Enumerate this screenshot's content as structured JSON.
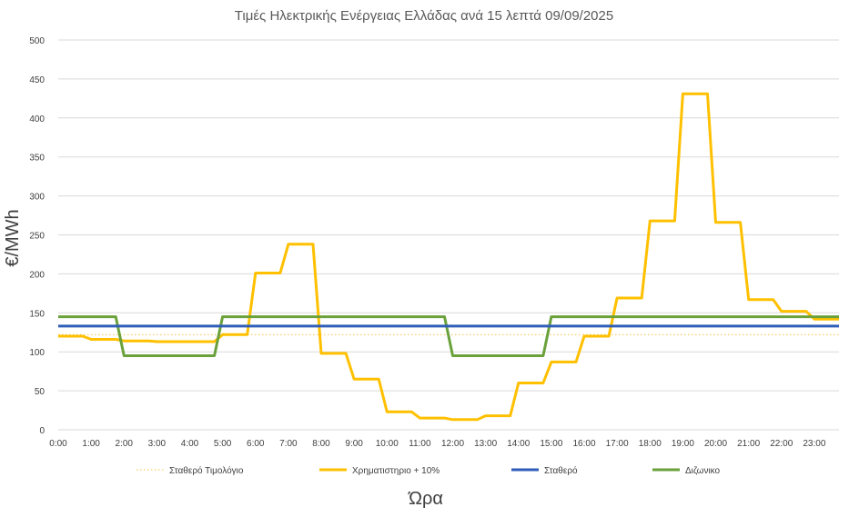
{
  "chart_data": {
    "type": "line",
    "title": "Τιμές Ηλεκτρικής Ενέργειας Ελλάδας ανά 15 λεπτά 09/09/2025",
    "xlabel": "Ώρα",
    "ylabel": "€/MWh",
    "ylim": [
      0,
      500
    ],
    "yticks": [
      0,
      50,
      100,
      150,
      200,
      250,
      300,
      350,
      400,
      450,
      500
    ],
    "xlim": [
      0,
      23.75
    ],
    "xticks": [
      "0:00",
      "1:00",
      "2:00",
      "3:00",
      "4:00",
      "5:00",
      "6:00",
      "7:00",
      "8:00",
      "9:00",
      "10:00",
      "11:00",
      "12:00",
      "13:00",
      "14:00",
      "15:00",
      "16:00",
      "17:00",
      "18:00",
      "19:00",
      "20:00",
      "21:00",
      "22:00",
      "23:00"
    ],
    "grid": "horizontal",
    "legend_position": "bottom",
    "series": [
      {
        "name": "Σταθερό Τιμολόγιο",
        "color": "#F5C242",
        "style": "dotted",
        "points": [
          [
            0,
            122
          ],
          [
            23.75,
            122
          ]
        ]
      },
      {
        "name": "Χρηματιστηριο + 10%",
        "color": "#FFC000",
        "style": "solid",
        "points": [
          [
            0,
            120
          ],
          [
            0.75,
            120
          ],
          [
            1.0,
            116
          ],
          [
            1.75,
            116
          ],
          [
            2.0,
            114
          ],
          [
            2.75,
            114
          ],
          [
            3.0,
            113
          ],
          [
            4.75,
            113
          ],
          [
            5.0,
            122
          ],
          [
            5.75,
            122
          ],
          [
            6.0,
            201
          ],
          [
            6.75,
            201
          ],
          [
            7.0,
            238
          ],
          [
            7.75,
            238
          ],
          [
            8.0,
            98
          ],
          [
            8.75,
            98
          ],
          [
            9.0,
            65
          ],
          [
            9.75,
            65
          ],
          [
            10.0,
            23
          ],
          [
            10.75,
            23
          ],
          [
            11.0,
            15
          ],
          [
            11.75,
            15
          ],
          [
            12.0,
            13
          ],
          [
            12.75,
            13
          ],
          [
            13.0,
            18
          ],
          [
            13.75,
            18
          ],
          [
            14.0,
            60
          ],
          [
            14.75,
            60
          ],
          [
            15.0,
            87
          ],
          [
            15.75,
            87
          ],
          [
            16.0,
            120
          ],
          [
            16.75,
            120
          ],
          [
            17.0,
            169
          ],
          [
            17.75,
            169
          ],
          [
            18.0,
            268
          ],
          [
            18.75,
            268
          ],
          [
            19.0,
            431
          ],
          [
            19.75,
            431
          ],
          [
            20.0,
            266
          ],
          [
            20.75,
            266
          ],
          [
            21.0,
            167
          ],
          [
            21.75,
            167
          ],
          [
            22.0,
            152
          ],
          [
            22.75,
            152
          ],
          [
            23.0,
            142
          ],
          [
            23.75,
            142
          ]
        ]
      },
      {
        "name": "Σταθερό",
        "color": "#2F5DB8",
        "style": "solid",
        "points": [
          [
            0,
            133
          ],
          [
            23.75,
            133
          ]
        ]
      },
      {
        "name": "Διζωνικο",
        "color": "#6AA13B",
        "style": "solid",
        "points": [
          [
            0,
            145
          ],
          [
            1.75,
            145
          ],
          [
            2.0,
            95
          ],
          [
            4.75,
            95
          ],
          [
            5.0,
            145
          ],
          [
            11.75,
            145
          ],
          [
            12.0,
            95
          ],
          [
            14.75,
            95
          ],
          [
            15.0,
            145
          ],
          [
            23.75,
            145
          ]
        ]
      }
    ]
  }
}
